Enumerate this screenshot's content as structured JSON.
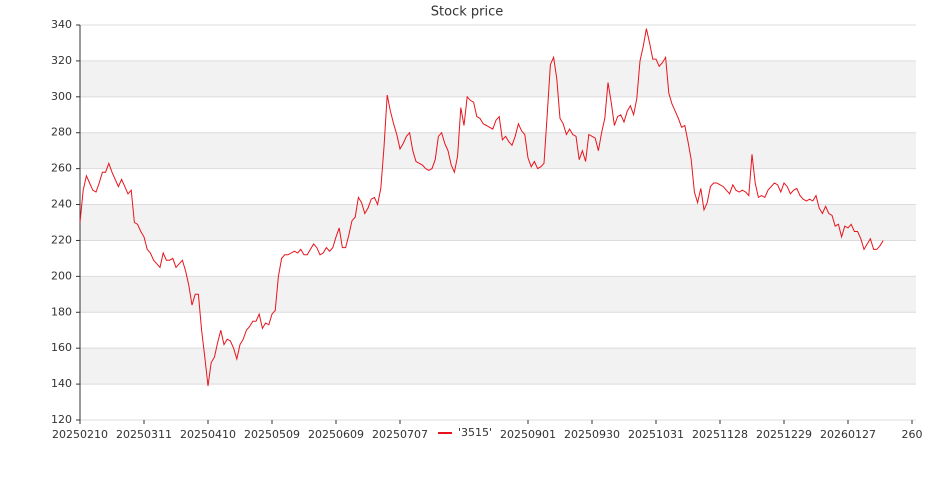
{
  "chart_data": {
    "type": "line",
    "title": "Stock price",
    "categories": [
      "20250210",
      null,
      null,
      null,
      null,
      null,
      null,
      null,
      null,
      null,
      null,
      null,
      null,
      null,
      null,
      null,
      null,
      null,
      null,
      null,
      "20250311",
      null,
      null,
      null,
      null,
      null,
      null,
      null,
      null,
      null,
      null,
      null,
      null,
      null,
      null,
      null,
      null,
      null,
      null,
      null,
      "20250410",
      null,
      null,
      null,
      null,
      null,
      null,
      null,
      null,
      null,
      null,
      null,
      null,
      null,
      null,
      null,
      null,
      null,
      null,
      null,
      "20250509",
      null,
      null,
      null,
      null,
      null,
      null,
      null,
      null,
      null,
      null,
      null,
      null,
      null,
      null,
      null,
      null,
      null,
      null,
      null,
      "20250609",
      null,
      null,
      null,
      null,
      null,
      null,
      null,
      null,
      null,
      null,
      null,
      null,
      null,
      null,
      null,
      null,
      null,
      null,
      null,
      "20250707",
      null,
      null,
      null,
      null,
      null,
      null,
      null,
      null,
      null,
      null,
      null,
      null,
      null,
      null,
      null,
      null,
      null,
      null,
      null,
      null,
      null,
      null,
      null,
      null,
      null,
      null,
      null,
      null,
      null,
      null,
      null,
      null,
      null,
      null,
      null,
      null,
      null,
      null,
      null,
      "20250901",
      null,
      null,
      null,
      null,
      null,
      null,
      null,
      null,
      null,
      null,
      null,
      null,
      null,
      null,
      null,
      null,
      null,
      null,
      null,
      "20250930",
      null,
      null,
      null,
      null,
      null,
      null,
      null,
      null,
      null,
      null,
      null,
      null,
      null,
      null,
      null,
      null,
      null,
      null,
      null,
      "20251031",
      null,
      null,
      null,
      null,
      null,
      null,
      null,
      null,
      null,
      null,
      null,
      null,
      null,
      null,
      null,
      null,
      null,
      null,
      null,
      "20251128",
      null,
      null,
      null,
      null,
      null,
      null,
      null,
      null,
      null,
      null,
      null,
      null,
      null,
      null,
      null,
      null,
      null,
      null,
      null,
      "20251229",
      null,
      null,
      null,
      null,
      null,
      null,
      null,
      null,
      null,
      null,
      null,
      null,
      null,
      null,
      null,
      null,
      null,
      null,
      null,
      "20260127",
      null,
      null,
      null,
      null,
      null,
      null,
      null,
      null,
      null,
      null,
      null,
      null,
      null,
      null,
      null,
      null,
      null,
      null,
      null,
      "260"
    ],
    "series": [
      {
        "name": "'3515'",
        "color": "#e8141c",
        "values": [
          230,
          248,
          256,
          252,
          248,
          247,
          252,
          258,
          258,
          263,
          258,
          254,
          250,
          254,
          250,
          246,
          248,
          230,
          229,
          225,
          222,
          215,
          213,
          209,
          207,
          205,
          213,
          209,
          209,
          210,
          205,
          207,
          209,
          203,
          195,
          184,
          190,
          190,
          170,
          155,
          139,
          152,
          155,
          163,
          170,
          162,
          165,
          164,
          160,
          154,
          162,
          165,
          170,
          172,
          175,
          175,
          179,
          171,
          174,
          173,
          179,
          181,
          200,
          210,
          212,
          212,
          213,
          214,
          213,
          215,
          212,
          212,
          215,
          218,
          216,
          212,
          213,
          216,
          214,
          216,
          222,
          227,
          216,
          216,
          223,
          231,
          233,
          244,
          241,
          235,
          238,
          243,
          244,
          240,
          249,
          272,
          301,
          292,
          285,
          279,
          271,
          274,
          278,
          280,
          270,
          264,
          263,
          262,
          260,
          259,
          260,
          265,
          278,
          280,
          274,
          270,
          262,
          258,
          267,
          294,
          284,
          300,
          298,
          297,
          289,
          288,
          285,
          284,
          283,
          282,
          287,
          289,
          276,
          278,
          275,
          273,
          278,
          285,
          281,
          279,
          266,
          261,
          264,
          260,
          261,
          263,
          290,
          318,
          322,
          310,
          288,
          285,
          279,
          282,
          279,
          278,
          265,
          270,
          264,
          279,
          278,
          277,
          270,
          280,
          288,
          308,
          297,
          284,
          289,
          290,
          286,
          292,
          295,
          290,
          299,
          320,
          328,
          338,
          330,
          321,
          321,
          317,
          319,
          322,
          302,
          296,
          292,
          288,
          283,
          284,
          275,
          265,
          247,
          241,
          249,
          237,
          241,
          250,
          252,
          252,
          251,
          250,
          248,
          246,
          251,
          248,
          247,
          248,
          247,
          245,
          268,
          252,
          244,
          245,
          244,
          248,
          250,
          252,
          251,
          247,
          252,
          250,
          246,
          248,
          249,
          245,
          243,
          242,
          243,
          242,
          245,
          238,
          235,
          239,
          235,
          234,
          228,
          229,
          222,
          228,
          227,
          229,
          225,
          225,
          221,
          215,
          218,
          221,
          215,
          215,
          217,
          220,
          null,
          null,
          null,
          null,
          null,
          null,
          null,
          null,
          null
        ]
      }
    ],
    "ylim": [
      120,
      340
    ],
    "yticks": [
      120,
      140,
      160,
      180,
      200,
      220,
      240,
      260,
      280,
      300,
      320,
      340
    ],
    "grid": true
  }
}
